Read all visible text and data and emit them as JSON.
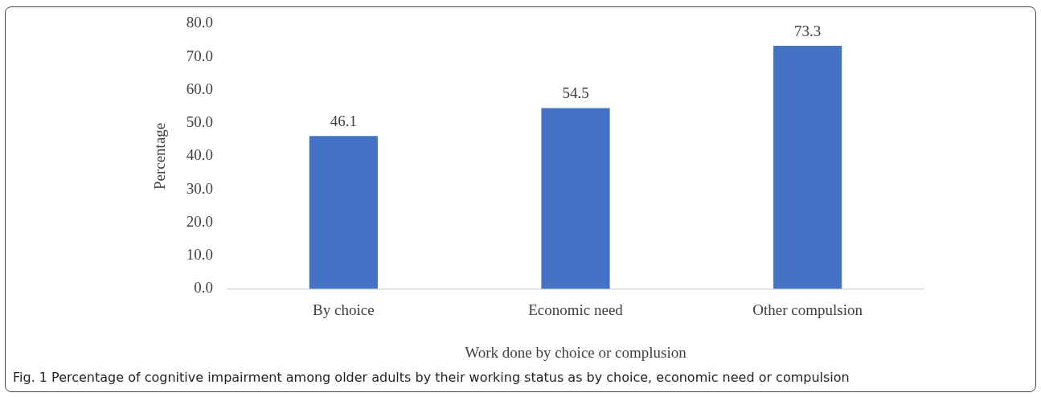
{
  "chart_data": {
    "type": "bar",
    "categories": [
      "By choice",
      "Economic need",
      "Other compulsion"
    ],
    "values": [
      46.1,
      54.5,
      73.3
    ],
    "color": "#4472c4",
    "xlabel": "Work done by choice or complusion",
    "ylabel": "Percentage",
    "ylim": [
      0,
      80
    ],
    "yticks": [
      {
        "value": 0,
        "label": "0.0"
      },
      {
        "value": 10,
        "label": "10.0"
      },
      {
        "value": 20,
        "label": "20.0"
      },
      {
        "value": 30,
        "label": "30.0"
      },
      {
        "value": 40,
        "label": "40.0"
      },
      {
        "value": 50,
        "label": "50.0"
      },
      {
        "value": 60,
        "label": "60.0"
      },
      {
        "value": 70,
        "label": "70.0"
      },
      {
        "value": 80,
        "label": "80.0"
      }
    ],
    "grid": false,
    "legend": false,
    "data_labels": true,
    "annotations": [
      "Fig. 1 Percentage of cognitive impairment among older adults by their working status as by choice, economic need or compulsion"
    ]
  }
}
